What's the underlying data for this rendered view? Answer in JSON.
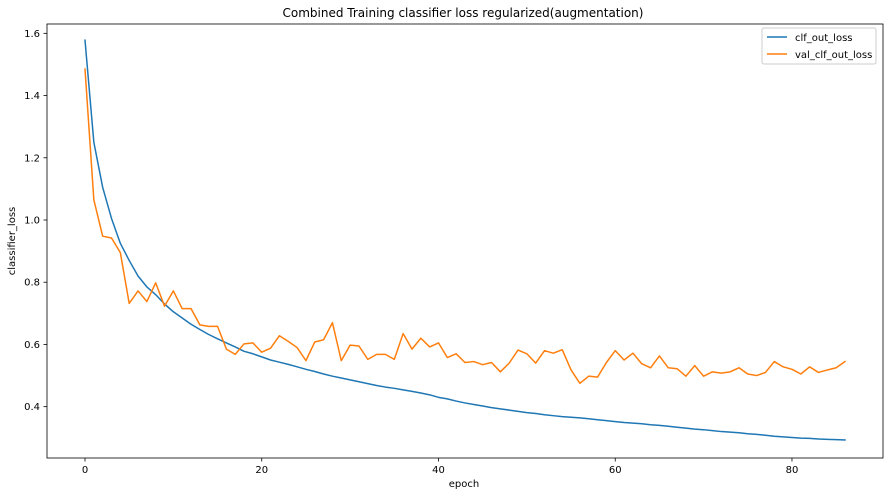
{
  "chart_data": {
    "type": "line",
    "title": "Combined Training classifier loss regularized(augmentation)",
    "xlabel": "epoch",
    "ylabel": "classifier_loss",
    "xlim": [
      -4.3,
      90.3
    ],
    "ylim": [
      0.235,
      1.63
    ],
    "xticks": [
      0,
      20,
      40,
      60,
      80
    ],
    "xtick_labels": [
      "0",
      "20",
      "40",
      "60",
      "80"
    ],
    "yticks": [
      0.4,
      0.6,
      0.8,
      1.0,
      1.2,
      1.4,
      1.6
    ],
    "ytick_labels": [
      "0.4",
      "0.6",
      "0.8",
      "1.0",
      "1.2",
      "1.4",
      "1.6"
    ],
    "grid": false,
    "legend_position": "top-right",
    "x": [
      0,
      1,
      2,
      3,
      4,
      5,
      6,
      7,
      8,
      9,
      10,
      11,
      12,
      13,
      14,
      15,
      16,
      17,
      18,
      19,
      20,
      21,
      22,
      23,
      24,
      25,
      26,
      27,
      28,
      29,
      30,
      31,
      32,
      33,
      34,
      35,
      36,
      37,
      38,
      39,
      40,
      41,
      42,
      43,
      44,
      45,
      46,
      47,
      48,
      49,
      50,
      51,
      52,
      53,
      54,
      55,
      56,
      57,
      58,
      59,
      60,
      61,
      62,
      63,
      64,
      65,
      66,
      67,
      68,
      69,
      70,
      71,
      72,
      73,
      74,
      75,
      76,
      77,
      78,
      79,
      80,
      81,
      82,
      83,
      84,
      85,
      86
    ],
    "series": [
      {
        "name": "clf_out_loss",
        "color": "#1f77b4",
        "values": [
          1.578,
          1.25,
          1.105,
          1.005,
          0.925,
          0.87,
          0.82,
          0.785,
          0.76,
          0.73,
          0.705,
          0.685,
          0.665,
          0.648,
          0.632,
          0.618,
          0.605,
          0.592,
          0.578,
          0.57,
          0.56,
          0.55,
          0.543,
          0.536,
          0.528,
          0.52,
          0.513,
          0.505,
          0.498,
          0.492,
          0.486,
          0.48,
          0.474,
          0.468,
          0.463,
          0.459,
          0.454,
          0.449,
          0.444,
          0.438,
          0.43,
          0.425,
          0.418,
          0.412,
          0.407,
          0.402,
          0.397,
          0.393,
          0.389,
          0.385,
          0.381,
          0.378,
          0.374,
          0.371,
          0.368,
          0.366,
          0.364,
          0.361,
          0.358,
          0.355,
          0.352,
          0.349,
          0.347,
          0.345,
          0.342,
          0.34,
          0.337,
          0.334,
          0.331,
          0.328,
          0.326,
          0.323,
          0.32,
          0.318,
          0.316,
          0.313,
          0.311,
          0.308,
          0.305,
          0.303,
          0.301,
          0.299,
          0.298,
          0.296,
          0.295,
          0.294,
          0.293
        ]
      },
      {
        "name": "val_clf_out_loss",
        "color": "#ff7f0e",
        "values": [
          1.485,
          1.065,
          0.948,
          0.942,
          0.895,
          0.732,
          0.772,
          0.738,
          0.798,
          0.723,
          0.772,
          0.715,
          0.715,
          0.663,
          0.658,
          0.658,
          0.585,
          0.568,
          0.602,
          0.605,
          0.575,
          0.588,
          0.628,
          0.61,
          0.59,
          0.548,
          0.608,
          0.615,
          0.67,
          0.548,
          0.598,
          0.595,
          0.552,
          0.568,
          0.568,
          0.552,
          0.635,
          0.585,
          0.62,
          0.592,
          0.605,
          0.558,
          0.57,
          0.542,
          0.545,
          0.535,
          0.542,
          0.512,
          0.54,
          0.582,
          0.57,
          0.54,
          0.58,
          0.572,
          0.583,
          0.518,
          0.475,
          0.498,
          0.495,
          0.542,
          0.58,
          0.55,
          0.572,
          0.538,
          0.525,
          0.563,
          0.525,
          0.522,
          0.498,
          0.532,
          0.498,
          0.512,
          0.508,
          0.512,
          0.525,
          0.505,
          0.5,
          0.51,
          0.545,
          0.528,
          0.52,
          0.505,
          0.528,
          0.51,
          0.518,
          0.525,
          0.545
        ]
      }
    ]
  }
}
